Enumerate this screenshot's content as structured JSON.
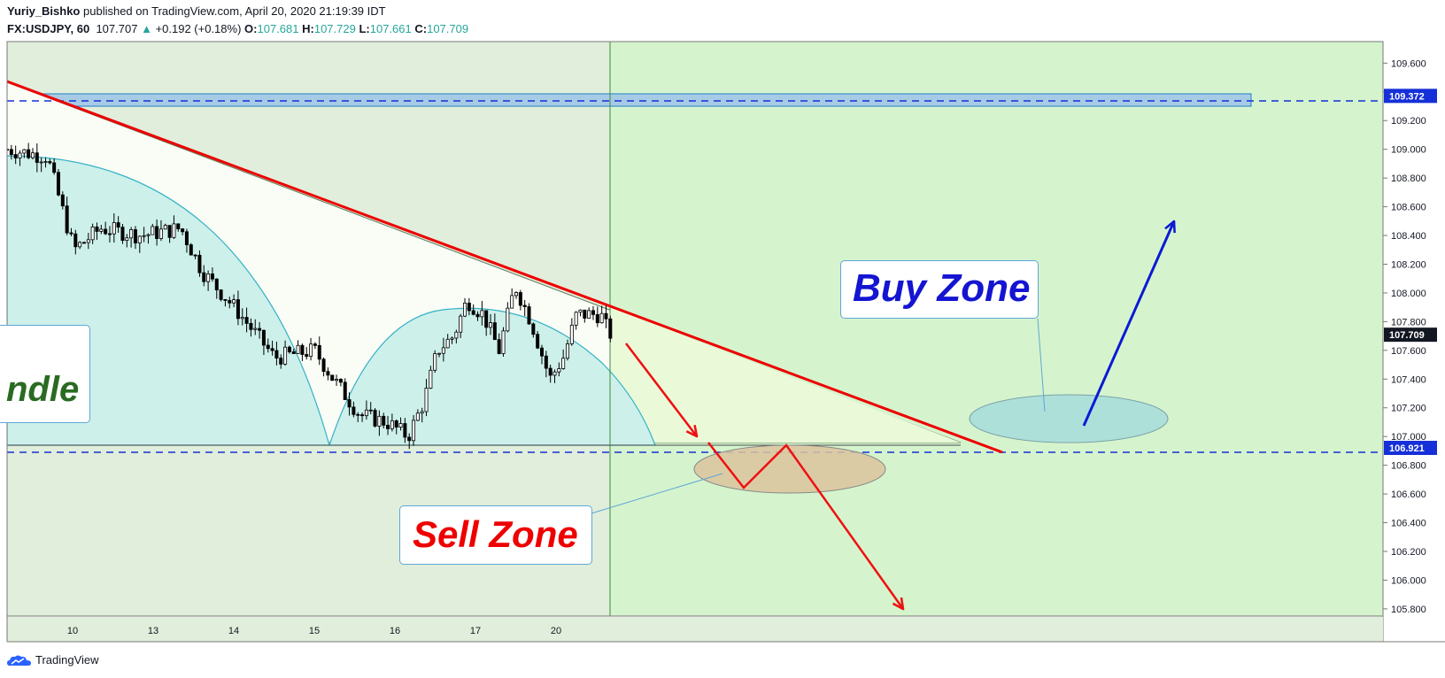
{
  "header": {
    "author": "Yuriy_Bishko",
    "published_text": "published on TradingView.com, April 20, 2020 21:19:39 IDT",
    "symbol": "FX:USDJPY, 60",
    "last": "107.707",
    "change": "+0.192 (+0.18%)",
    "o_label": "O:",
    "o": "107.681",
    "h_label": "H:",
    "h": "107.729",
    "l_label": "L:",
    "l": "107.661",
    "c_label": "C:",
    "c": "107.709"
  },
  "footer": {
    "brand": "TradingView"
  },
  "annotations": {
    "buy_zone": "Buy Zone",
    "sell_zone": "Sell Zone",
    "pattern_fragment": "ndle"
  },
  "colors": {
    "past_bg": "#e0eedb",
    "future_bg": "#d5f4cd",
    "trendline": "#ee0000",
    "dashed_level": "#1530d8",
    "buy_arrow": "#0b1ad4",
    "sell_arrow": "#ee1111",
    "buy_text": "#1414d2",
    "sell_text": "#ee0000",
    "pattern_text": "#2a6b22",
    "bullish_candle": "#ffffff",
    "bearish_candle": "#000000"
  },
  "chart_data": {
    "type": "candlestick",
    "title": "FX:USDJPY, 60",
    "y_axis": {
      "range": [
        105.75,
        109.75
      ],
      "ticks": [
        "109.600",
        "109.400",
        "109.200",
        "109.000",
        "108.800",
        "108.600",
        "108.400",
        "108.200",
        "108.000",
        "107.800",
        "107.600",
        "107.400",
        "107.200",
        "107.000",
        "106.800",
        "106.600",
        "106.400",
        "106.200",
        "106.000",
        "105.800"
      ]
    },
    "x_axis": {
      "tick_labels": [
        "10",
        "13",
        "14",
        "15",
        "16",
        "17",
        "20"
      ]
    },
    "price_labels": [
      {
        "value": "109.372",
        "style": "blue"
      },
      {
        "value": "107.709",
        "style": "dark"
      },
      {
        "value": "106.921",
        "style": "blue"
      }
    ],
    "horizontal_levels": [
      109.372,
      106.921
    ],
    "resistance_zone": [
      109.3,
      109.44
    ],
    "support_line": 106.99,
    "price_path": [
      [
        0,
        109.0
      ],
      [
        1.5,
        108.95
      ],
      [
        2.5,
        108.3
      ],
      [
        3.5,
        108.45
      ],
      [
        5,
        108.4
      ],
      [
        6.5,
        108.45
      ],
      [
        7.3,
        108.15
      ],
      [
        8.5,
        107.9
      ],
      [
        10.0,
        107.55
      ],
      [
        11.5,
        107.6
      ],
      [
        12.2,
        107.4
      ],
      [
        13.2,
        107.15
      ],
      [
        14.2,
        107.1
      ],
      [
        15,
        107.0
      ],
      [
        15.6,
        107.25
      ],
      [
        16.1,
        107.6
      ],
      [
        16.7,
        107.7
      ],
      [
        17.2,
        107.95
      ],
      [
        17.8,
        107.85
      ],
      [
        18.4,
        107.6
      ],
      [
        19,
        108.05
      ],
      [
        19.6,
        107.8
      ],
      [
        20.3,
        107.4
      ],
      [
        20.8,
        107.55
      ],
      [
        21.3,
        107.85
      ],
      [
        22.2,
        107.85
      ],
      [
        22.5,
        107.72
      ],
      [
        22.7,
        107.709
      ]
    ],
    "scenario_paths": {
      "sell_path": [
        [
          22.7,
          107.709
        ],
        [
          26.0,
          107.05
        ],
        [
          26.5,
          106.95
        ],
        [
          28.0,
          106.68
        ],
        [
          29.5,
          106.98
        ],
        [
          33.5,
          105.85
        ]
      ],
      "buy_path": [
        [
          40.5,
          107.1
        ],
        [
          44.0,
          108.55
        ]
      ]
    },
    "zones": [
      {
        "name": "Sell Zone",
        "center": [
          29.5,
          106.87
        ],
        "radius": [
          3.6,
          0.17
        ]
      },
      {
        "name": "Buy Zone",
        "center": [
          40.0,
          107.17
        ],
        "radius": [
          3.8,
          0.17
        ]
      }
    ],
    "trendline": [
      [
        0,
        109.55
      ],
      [
        37.6,
        106.92
      ]
    ]
  }
}
